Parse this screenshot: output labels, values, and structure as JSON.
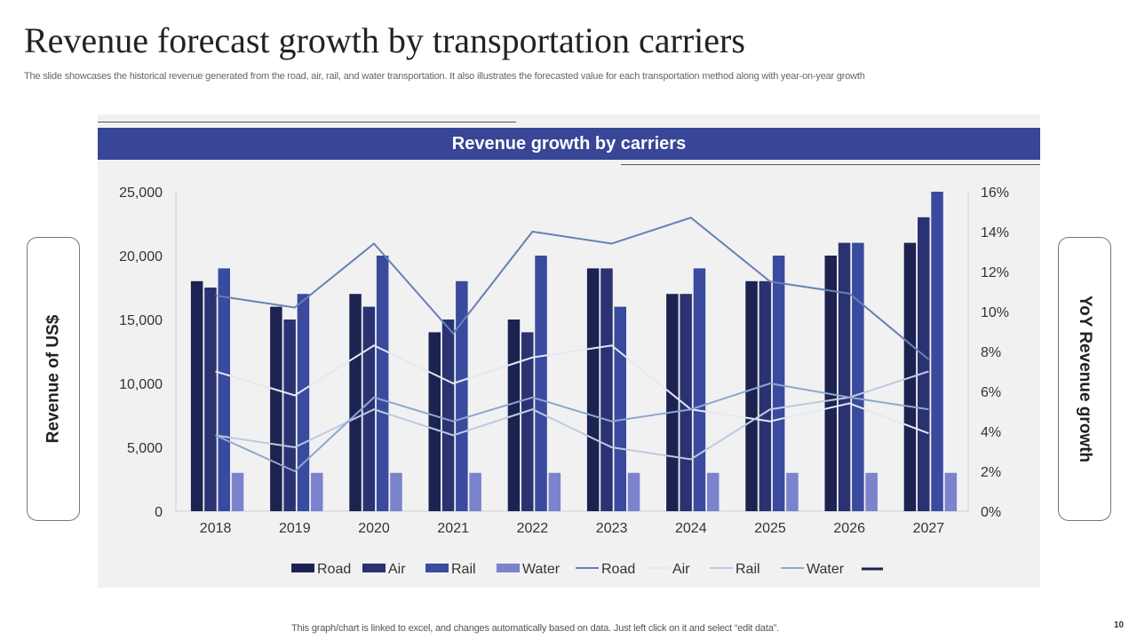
{
  "slide": {
    "title": "Revenue forecast growth by transportation carriers",
    "subtitle": "The slide showcases the historical revenue generated from the road, air, rail, and water transportation. It also illustrates the forecasted value for each transportation method along with year-on-year growth",
    "banner": "Revenue growth by carriers",
    "left_label": "Revenue of US$",
    "right_label": "YoY Revenue growth",
    "footer": "This graph/chart is linked to excel, and changes automatically based on data. Just left click on it and select “edit data”.",
    "page_number": "10"
  },
  "chart_data": {
    "type": "bar",
    "title": "Revenue growth by carriers",
    "xlabel": "",
    "ylabel": "Revenue of US$",
    "y2label": "YoY Revenue growth",
    "categories": [
      "2018",
      "2019",
      "2020",
      "2021",
      "2022",
      "2023",
      "2024",
      "2025",
      "2026",
      "2027"
    ],
    "ylim": [
      0,
      25000
    ],
    "yticks": [
      "0",
      "5,000",
      "10,000",
      "15,000",
      "20,000",
      "25,000"
    ],
    "y2lim": [
      0,
      16
    ],
    "y2ticks": [
      "0%",
      "2%",
      "4%",
      "6%",
      "8%",
      "10%",
      "12%",
      "14%",
      "16%"
    ],
    "grid": false,
    "legend_position": "bottom",
    "bar_series": [
      {
        "name": "Road",
        "color": "#1c2350",
        "values": [
          18000,
          16000,
          17000,
          14000,
          15000,
          19000,
          17000,
          18000,
          20000,
          21000
        ]
      },
      {
        "name": "Air",
        "color": "#2a3272",
        "values": [
          17500,
          15000,
          16000,
          15000,
          14000,
          19000,
          17000,
          18000,
          21000,
          23000
        ]
      },
      {
        "name": "Rail",
        "color": "#3a4a9e",
        "values": [
          19000,
          17000,
          20000,
          18000,
          20000,
          16000,
          19000,
          20000,
          21000,
          25000
        ]
      },
      {
        "name": "Water",
        "color": "#7a83cc",
        "values": [
          3000,
          3000,
          3000,
          3000,
          3000,
          3000,
          3000,
          3000,
          3000,
          3000
        ]
      }
    ],
    "line_series": [
      {
        "name": "Road",
        "color": "#6681b4",
        "axis": "right",
        "values": [
          10.8,
          10.2,
          13.4,
          8.9,
          14.0,
          13.4,
          14.7,
          11.5,
          10.9,
          7.6
        ]
      },
      {
        "name": "Air",
        "color": "#e4e9f2",
        "axis": "right",
        "values": [
          7.0,
          5.8,
          8.3,
          6.4,
          7.7,
          8.3,
          5.1,
          4.5,
          5.4,
          3.9
        ]
      },
      {
        "name": "Rail",
        "color": "#bccbe2",
        "axis": "right",
        "values": [
          3.8,
          3.2,
          5.1,
          3.8,
          5.1,
          3.2,
          2.6,
          5.1,
          5.7,
          7.0
        ]
      },
      {
        "name": "Water",
        "color": "#8fa7d0",
        "axis": "right",
        "values": [
          3.8,
          2.0,
          5.7,
          4.5,
          5.7,
          4.5,
          5.1,
          6.4,
          5.7,
          5.1
        ]
      }
    ],
    "legend_extra": {
      "name": "",
      "color": "#1c2350"
    }
  }
}
